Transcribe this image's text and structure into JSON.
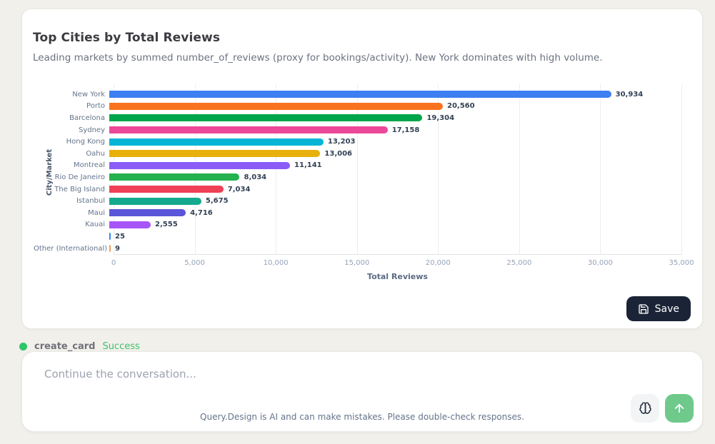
{
  "card": {
    "title": "Top Cities by Total Reviews",
    "subtitle": "Leading markets by summed number_of_reviews (proxy for bookings/activity). New York dominates with high volume.",
    "save_label": "Save"
  },
  "chart_data": {
    "type": "bar",
    "orientation": "horizontal",
    "title": "Top Cities by Total Reviews",
    "xlabel": "Total Reviews",
    "ylabel": "City/Market",
    "xlim": [
      0,
      35000
    ],
    "xticks": [
      0,
      5000,
      10000,
      15000,
      20000,
      25000,
      30000,
      35000
    ],
    "grid": true,
    "categories": [
      "New York",
      "Porto",
      "Barcelona",
      "Sydney",
      "Hong Kong",
      "Oahu",
      "Montreal",
      "Rio De Janeiro",
      "The Big Island",
      "Istanbul",
      "Maui",
      "Kauai",
      "",
      "Other (International)"
    ],
    "values": [
      30934,
      20560,
      19304,
      17158,
      13203,
      13006,
      11141,
      8034,
      7034,
      5675,
      4716,
      2555,
      25,
      9
    ],
    "bar_colors": [
      "#3b7ff2",
      "#f9731f",
      "#00a54a",
      "#ec4899",
      "#08b5d6",
      "#e8b00c",
      "#8b5cf6",
      "#24b24e",
      "#ef4056",
      "#15aa8e",
      "#5b55d9",
      "#a855f7",
      "#3b82f6",
      "#f59a5b"
    ]
  },
  "status": {
    "tool": "create_card",
    "result": "Success",
    "dot_color": "#2fc56b"
  },
  "composer": {
    "placeholder": "Continue the conversation...",
    "disclaimer": "Query.Design is AI and can make mistakes. Please double-check responses."
  },
  "colors": {
    "page_background": "#f1f0ea",
    "save_button": "#1b2436",
    "send_button": "#6ec98b",
    "success_text": "#3fc06e"
  }
}
